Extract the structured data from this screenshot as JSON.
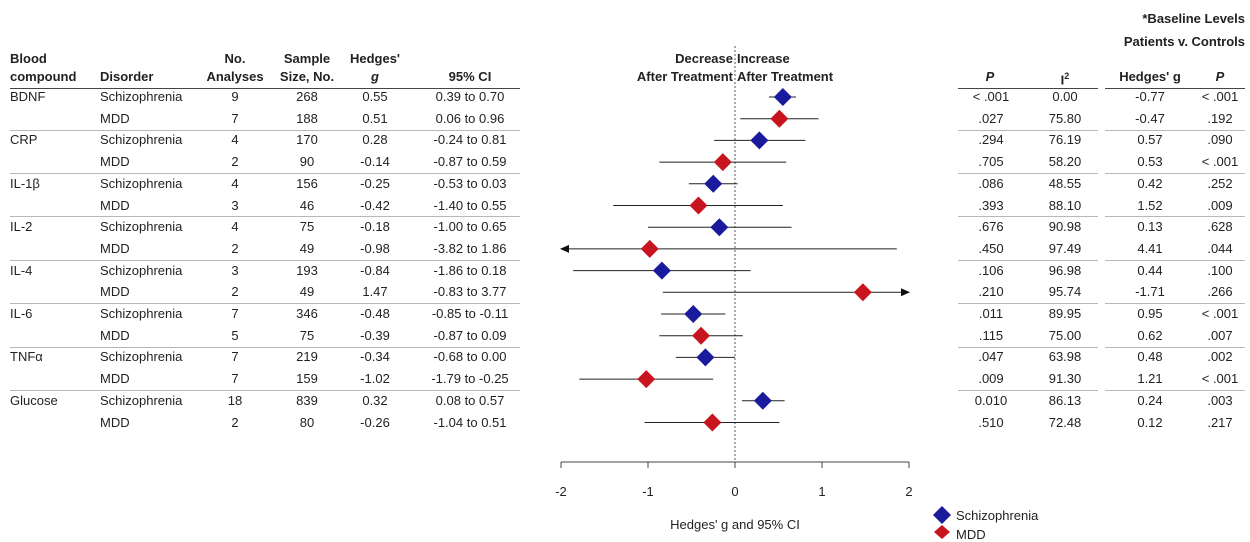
{
  "baseline_note": {
    "line1": "*Baseline Levels",
    "line2": "Patients v. Controls"
  },
  "headers": {
    "compound_1": "Blood",
    "compound_2": "compound",
    "disorder": "Disorder",
    "analyses_1": "No.",
    "analyses_2": "Analyses",
    "sample_1": "Sample",
    "sample_2": "Size, No.",
    "hedges_1": "Hedges'",
    "hedges_2": "g",
    "ci": "95% CI",
    "decrease_1": "Decrease",
    "decrease_2": "After Treatment",
    "increase_1": "Increase",
    "increase_2": "After Treatment",
    "p": "P",
    "i2": "I",
    "i2_sup": "2",
    "base_hedges": "Hedges' g",
    "base_p": "P"
  },
  "rows": [
    {
      "compound": "BDNF",
      "disorder": "Schizophrenia",
      "n": "9",
      "size": "268",
      "g": "0.55",
      "ci": "0.39 to 0.70",
      "p": "< .001",
      "i2": "0.00",
      "bg": "-0.77",
      "bp": "< .001"
    },
    {
      "compound": "",
      "disorder": "MDD",
      "n": "7",
      "size": "188",
      "g": "0.51",
      "ci": "0.06 to 0.96",
      "p": ".027",
      "i2": "75.80",
      "bg": "-0.47",
      "bp": ".192"
    },
    {
      "compound": "CRP",
      "disorder": "Schizophrenia",
      "n": "4",
      "size": "170",
      "g": "0.28",
      "ci": "-0.24 to 0.81",
      "p": ".294",
      "i2": "76.19",
      "bg": "0.57",
      "bp": ".090"
    },
    {
      "compound": "",
      "disorder": "MDD",
      "n": "2",
      "size": "90",
      "g": "-0.14",
      "ci": "-0.87 to 0.59",
      "p": ".705",
      "i2": "58.20",
      "bg": "0.53",
      "bp": "< .001"
    },
    {
      "compound": "IL-1β",
      "disorder": "Schizophrenia",
      "n": "4",
      "size": "156",
      "g": "-0.25",
      "ci": "-0.53 to 0.03",
      "p": ".086",
      "i2": "48.55",
      "bg": "0.42",
      "bp": ".252"
    },
    {
      "compound": "",
      "disorder": "MDD",
      "n": "3",
      "size": "46",
      "g": "-0.42",
      "ci": "-1.40 to 0.55",
      "p": ".393",
      "i2": "88.10",
      "bg": "1.52",
      "bp": ".009"
    },
    {
      "compound": "IL-2",
      "disorder": "Schizophrenia",
      "n": "4",
      "size": "75",
      "g": "-0.18",
      "ci": "-1.00 to 0.65",
      "p": ".676",
      "i2": "90.98",
      "bg": "0.13",
      "bp": ".628"
    },
    {
      "compound": "",
      "disorder": "MDD",
      "n": "2",
      "size": "49",
      "g": "-0.98",
      "ci": "-3.82 to 1.86",
      "p": ".450",
      "i2": "97.49",
      "bg": "4.41",
      "bp": ".044"
    },
    {
      "compound": "IL-4",
      "disorder": "Schizophrenia",
      "n": "3",
      "size": "193",
      "g": "-0.84",
      "ci": "-1.86 to 0.18",
      "p": ".106",
      "i2": "96.98",
      "bg": "0.44",
      "bp": ".100"
    },
    {
      "compound": "",
      "disorder": "MDD",
      "n": "2",
      "size": "49",
      "g": "1.47",
      "ci": "-0.83 to 3.77",
      "p": ".210",
      "i2": "95.74",
      "bg": "-1.71",
      "bp": ".266"
    },
    {
      "compound": "IL-6",
      "disorder": "Schizophrenia",
      "n": "7",
      "size": "346",
      "g": "-0.48",
      "ci": "-0.85 to -0.11",
      "p": ".011",
      "i2": "89.95",
      "bg": "0.95",
      "bp": "< .001"
    },
    {
      "compound": "",
      "disorder": "MDD",
      "n": "5",
      "size": "75",
      "g": "-0.39",
      "ci": "-0.87 to 0.09",
      "p": ".115",
      "i2": "75.00",
      "bg": "0.62",
      "bp": ".007"
    },
    {
      "compound": "TNFα",
      "disorder": "Schizophrenia",
      "n": "7",
      "size": "219",
      "g": "-0.34",
      "ci": "-0.68 to 0.00",
      "p": ".047",
      "i2": "63.98",
      "bg": "0.48",
      "bp": ".002"
    },
    {
      "compound": "",
      "disorder": "MDD",
      "n": "7",
      "size": "159",
      "g": "-1.02",
      "ci": "-1.79 to -0.25",
      "p": ".009",
      "i2": "91.30",
      "bg": "1.21",
      "bp": "< .001"
    },
    {
      "compound": "Glucose",
      "disorder": "Schizophrenia",
      "n": "18",
      "size": "839",
      "g": "0.32",
      "ci": "0.08 to 0.57",
      "p": "0.010",
      "i2": "86.13",
      "bg": "0.24",
      "bp": ".003"
    },
    {
      "compound": "",
      "disorder": "MDD",
      "n": "2",
      "size": "80",
      "g": "-0.26",
      "ci": "-1.04 to 0.51",
      "p": ".510",
      "i2": "72.48",
      "bg": "0.12",
      "bp": ".217"
    }
  ],
  "chart_data": {
    "type": "scatter",
    "subtype": "forest_plot",
    "xlabel": "Hedges' g and 95% CI",
    "xlim": [
      -2,
      2
    ],
    "xticks": [
      "-2",
      "-1",
      "0",
      "1",
      "2"
    ],
    "reference_line": 0,
    "series": [
      {
        "name": "Schizophrenia",
        "color": "#1a1a9c",
        "marker": "diamond"
      },
      {
        "name": "MDD",
        "color": "#c8141e",
        "marker": "diamond"
      }
    ],
    "points": [
      {
        "label": "BDNF Schizophrenia",
        "series": 0,
        "g": 0.55,
        "lo": 0.39,
        "hi": 0.7
      },
      {
        "label": "BDNF MDD",
        "series": 1,
        "g": 0.51,
        "lo": 0.06,
        "hi": 0.96
      },
      {
        "label": "CRP Schizophrenia",
        "series": 0,
        "g": 0.28,
        "lo": -0.24,
        "hi": 0.81
      },
      {
        "label": "CRP MDD",
        "series": 1,
        "g": -0.14,
        "lo": -0.87,
        "hi": 0.59
      },
      {
        "label": "IL-1β Schizophrenia",
        "series": 0,
        "g": -0.25,
        "lo": -0.53,
        "hi": 0.03
      },
      {
        "label": "IL-1β MDD",
        "series": 1,
        "g": -0.42,
        "lo": -1.4,
        "hi": 0.55
      },
      {
        "label": "IL-2 Schizophrenia",
        "series": 0,
        "g": -0.18,
        "lo": -1.0,
        "hi": 0.65
      },
      {
        "label": "IL-2 MDD",
        "series": 1,
        "g": -0.98,
        "lo": -3.82,
        "hi": 1.86
      },
      {
        "label": "IL-4 Schizophrenia",
        "series": 0,
        "g": -0.84,
        "lo": -1.86,
        "hi": 0.18
      },
      {
        "label": "IL-4 MDD",
        "series": 1,
        "g": 1.47,
        "lo": -0.83,
        "hi": 3.77
      },
      {
        "label": "IL-6 Schizophrenia",
        "series": 0,
        "g": -0.48,
        "lo": -0.85,
        "hi": -0.11
      },
      {
        "label": "IL-6 MDD",
        "series": 1,
        "g": -0.39,
        "lo": -0.87,
        "hi": 0.09
      },
      {
        "label": "TNFα Schizophrenia",
        "series": 0,
        "g": -0.34,
        "lo": -0.68,
        "hi": 0.0
      },
      {
        "label": "TNFα MDD",
        "series": 1,
        "g": -1.02,
        "lo": -1.79,
        "hi": -0.25
      },
      {
        "label": "Glucose Schizophrenia",
        "series": 0,
        "g": 0.32,
        "lo": 0.08,
        "hi": 0.57
      },
      {
        "label": "Glucose MDD",
        "series": 1,
        "g": -0.26,
        "lo": -1.04,
        "hi": 0.51
      }
    ]
  }
}
